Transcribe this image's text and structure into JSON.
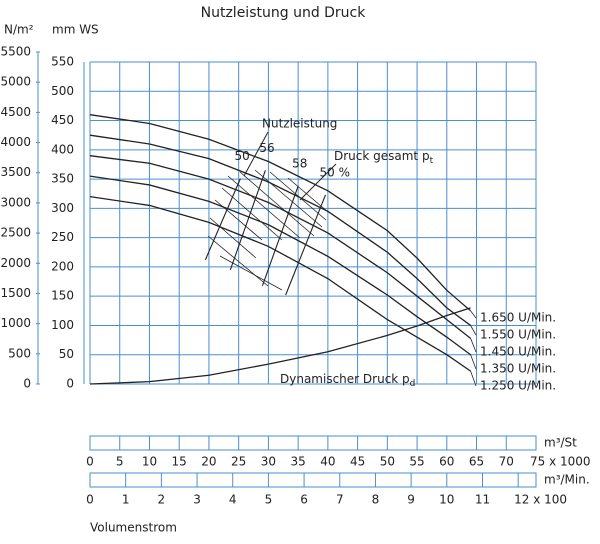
{
  "chart_data": {
    "type": "line",
    "title": "Nutzleistung und Druck",
    "y_label": "mm WS",
    "y2_label": "N/m²",
    "ylim": [
      0,
      550
    ],
    "yticks": [
      0,
      50,
      100,
      150,
      200,
      250,
      300,
      350,
      400,
      450,
      500,
      550
    ],
    "y2lim": [
      0,
      5500
    ],
    "y2ticks": [
      0,
      500,
      1000,
      1500,
      2000,
      2500,
      3000,
      3500,
      4000,
      4500,
      5000,
      5500
    ],
    "x_label": "m³/St",
    "xlim": [
      0,
      75
    ],
    "xticks": [
      0,
      5,
      10,
      15,
      20,
      25,
      30,
      35,
      40,
      45,
      50,
      55,
      60,
      65,
      70,
      {
        "value": 75,
        "label": "75 x 1000"
      }
    ],
    "x2_label": "m³/Min.",
    "x2lim": [
      0,
      12.5
    ],
    "x2ticks": [
      0,
      1,
      2,
      3,
      4,
      5,
      6,
      7,
      8,
      9,
      10,
      11,
      {
        "value": 12,
        "label": "12 x 100"
      }
    ],
    "x_title": "Volumenstrom",
    "grid": true,
    "color": "#222222",
    "grid_color": "#4a8fd0",
    "x": [
      0,
      10,
      20,
      30,
      40,
      50,
      55,
      60,
      64
    ],
    "series": [
      {
        "name": "1.650 U/Min.",
        "values": [
          460,
          445,
          418,
          380,
          330,
          262,
          215,
          160,
          125
        ]
      },
      {
        "name": "1.550 U/Min.",
        "values": [
          425,
          410,
          385,
          345,
          295,
          225,
          180,
          130,
          100
        ]
      },
      {
        "name": "1.450 U/Min.",
        "values": [
          390,
          377,
          350,
          310,
          258,
          190,
          150,
          110,
          78
        ]
      },
      {
        "name": "1.350 U/Min.",
        "values": [
          355,
          340,
          312,
          272,
          218,
          152,
          115,
          80,
          50
        ]
      },
      {
        "name": "1.250 U/Min.",
        "values": [
          320,
          305,
          276,
          235,
          180,
          110,
          80,
          50,
          22
        ]
      }
    ],
    "dynamic": {
      "name": "Dynamischer Druck p",
      "sub": "d",
      "values": [
        0,
        4,
        15,
        34,
        55,
        83,
        99,
        117,
        130
      ]
    },
    "efficiency_title": "Nutzleistung",
    "efficiency_lines": [
      {
        "label": "50",
        "x": [
          19.4,
          25.3
        ],
        "values": [
          212,
          351
        ]
      },
      {
        "label": "56",
        "x": [
          23.6,
          29.5
        ],
        "values": [
          195,
          365
        ]
      },
      {
        "label": "58",
        "x": [
          29,
          35
        ],
        "values": [
          168,
          338
        ]
      },
      {
        "label": "50 %",
        "x": [
          32.9,
          39.6
        ],
        "values": [
          152,
          323
        ]
      }
    ],
    "total_pressure": {
      "text": "Druck gesamt p",
      "sub": "t"
    }
  }
}
